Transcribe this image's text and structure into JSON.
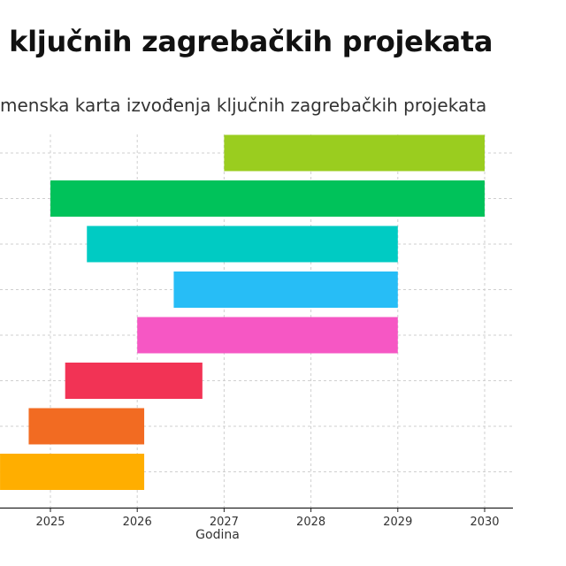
{
  "page": {
    "headline": "a ključnih zagrebačkih projekata"
  },
  "chart_data": {
    "type": "gantt",
    "title": "menska karta izvođenja ključnih zagrebačkih projekata",
    "xlabel": "Godina",
    "ylabel": "",
    "xlim": [
      2024.42,
      2030.3
    ],
    "x_ticks": [
      2025,
      2026,
      2027,
      2028,
      2029,
      2030
    ],
    "x_tick_labels": [
      "2025",
      "2026",
      "2027",
      "2028",
      "2029",
      "2030"
    ],
    "grid": true,
    "legend": "none",
    "tasks": [
      {
        "start": 2027.0,
        "end": 2030.0,
        "color": "#9ACD1F"
      },
      {
        "start": 2025.0,
        "end": 2030.0,
        "color": "#00C25A"
      },
      {
        "start": 2025.42,
        "end": 2029.0,
        "color": "#00CBC3"
      },
      {
        "start": 2026.42,
        "end": 2029.0,
        "color": "#27BDF6"
      },
      {
        "start": 2026.0,
        "end": 2029.0,
        "color": "#F657C4"
      },
      {
        "start": 2025.17,
        "end": 2026.75,
        "color": "#F23355"
      },
      {
        "start": 2024.75,
        "end": 2026.08,
        "color": "#F26B22"
      },
      {
        "start": 2024.42,
        "end": 2026.08,
        "color": "#FFAE00"
      }
    ]
  }
}
